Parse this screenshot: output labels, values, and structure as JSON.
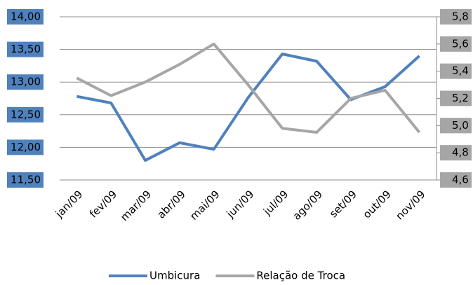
{
  "chart_data": {
    "type": "line",
    "categories": [
      "jan/09",
      "fev/09",
      "mar/09",
      "abr/09",
      "mai/09",
      "jun/09",
      "jul/09",
      "ago/09",
      "set/09",
      "out/09",
      "nov/09"
    ],
    "series": [
      {
        "name": "Umbicura",
        "color": "#4f81bd",
        "values": [
          12.78,
          12.68,
          11.8,
          12.07,
          11.97,
          12.76,
          13.43,
          13.32,
          12.73,
          12.93,
          13.4
        ]
      },
      {
        "name": "Relação de Troca",
        "color": "#a6a6a6",
        "axis": "y2",
        "values": [
          5.35,
          5.22,
          5.32,
          5.45,
          5.6,
          5.3,
          4.98,
          4.95,
          5.2,
          5.26,
          4.95
        ]
      }
    ],
    "ylim": [
      11.5,
      14
    ],
    "yticks": [
      {
        "value": 11.5,
        "label": "11,50"
      },
      {
        "value": 12,
        "label": "12,00"
      },
      {
        "value": 12.5,
        "label": "12,50"
      },
      {
        "value": 13,
        "label": "13,00"
      },
      {
        "value": 13.5,
        "label": "13,50"
      },
      {
        "value": 14,
        "label": "14,00"
      }
    ],
    "y2lim": [
      4.6,
      5.8
    ],
    "y2ticks": [
      {
        "value": 4.6,
        "label": "4,6"
      },
      {
        "value": 4.8,
        "label": "4,8"
      },
      {
        "value": 5,
        "label": "5,0"
      },
      {
        "value": 5.2,
        "label": "5,2"
      },
      {
        "value": 5.4,
        "label": "5,4"
      },
      {
        "value": 5.6,
        "label": "5,6"
      },
      {
        "value": 5.8,
        "label": "5,8"
      }
    ],
    "grid": true,
    "legend": "bottom"
  }
}
